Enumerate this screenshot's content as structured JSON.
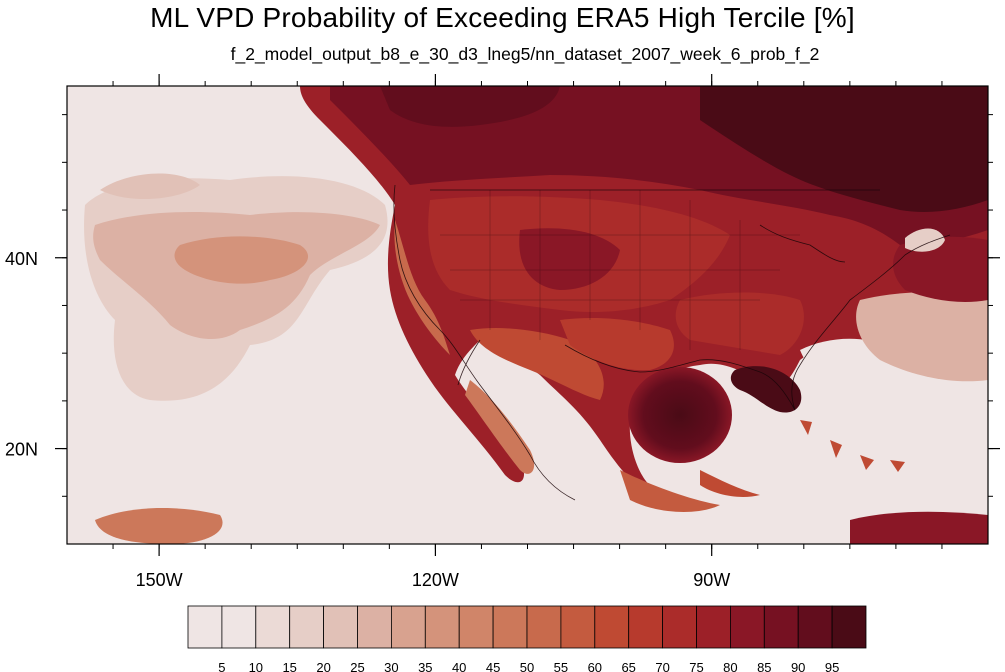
{
  "title": "ML VPD Probability of Exceeding ERA5 High Tercile [%]",
  "subtitle": "f_2_model_output_b8_e_30_d3_lneg5/nn_dataset_2007_week_6_prob_f_2",
  "map": {
    "projection": "cylindrical equidistant",
    "lon_range": [
      -160,
      -60
    ],
    "lat_range": [
      10,
      58
    ],
    "x_ticks": [
      {
        "value": -150,
        "label": "150W"
      },
      {
        "value": -120,
        "label": "120W"
      },
      {
        "value": -90,
        "label": "90W"
      }
    ],
    "y_ticks": [
      {
        "value": 40,
        "label": "40N"
      },
      {
        "value": 20,
        "label": "20N"
      }
    ]
  },
  "colorbar": {
    "labels": [
      "5",
      "10",
      "15",
      "20",
      "25",
      "30",
      "35",
      "40",
      "45",
      "50",
      "55",
      "60",
      "65",
      "70",
      "75",
      "80",
      "85",
      "90",
      "95"
    ],
    "colors": [
      "#efe5e4",
      "#ebdad6",
      "#e6cec7",
      "#e1c1b7",
      "#dcb1a4",
      "#d8a28f",
      "#d4937b",
      "#d08569",
      "#cc785a",
      "#c86a4c",
      "#c45b3f",
      "#bf4a33",
      "#b73a2d",
      "#ab2c2a",
      "#9c2028",
      "#8a1726",
      "#761122",
      "#620d1d",
      "#4a0b16"
    ]
  }
}
